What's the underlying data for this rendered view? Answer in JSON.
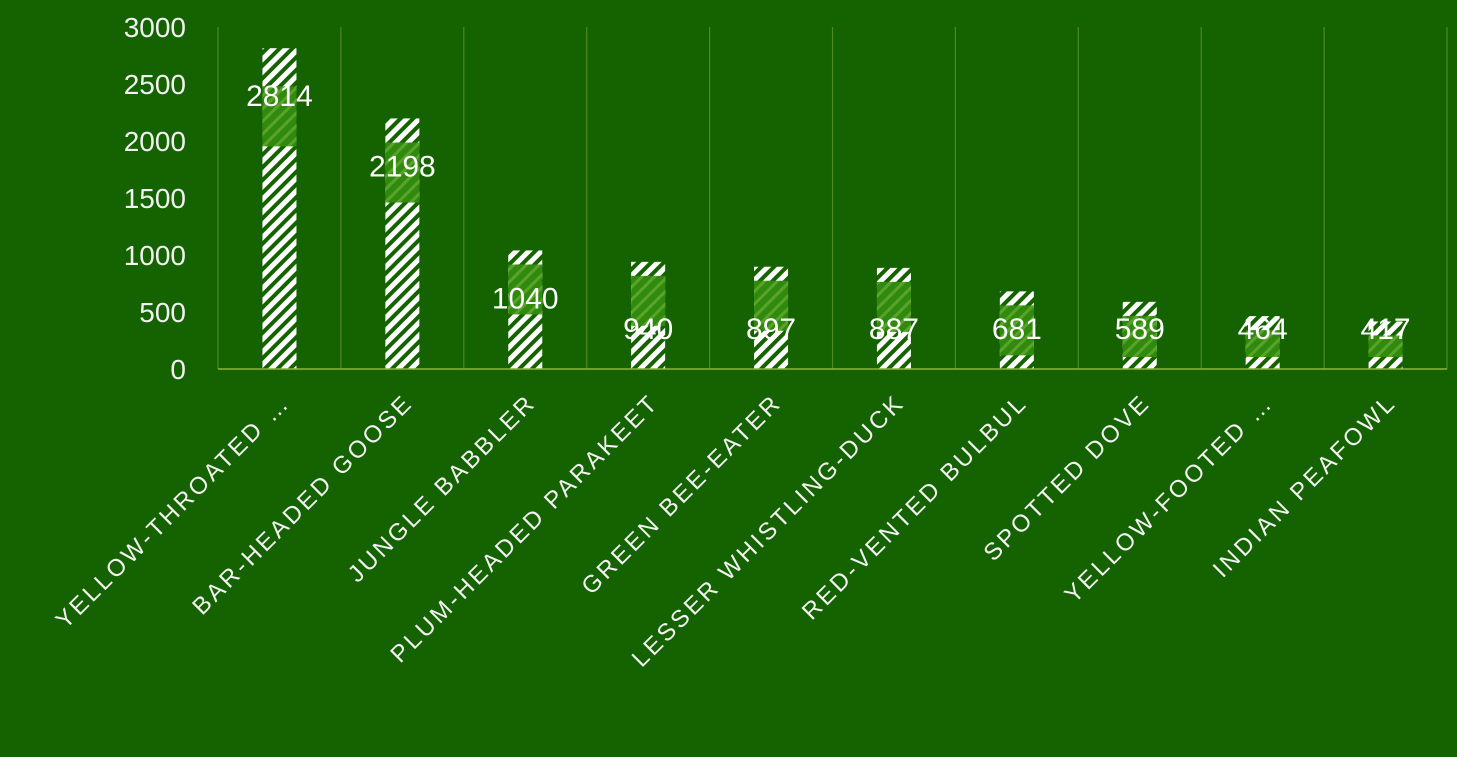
{
  "colors": {
    "background": "#156200",
    "gridline": "#4f8a1e",
    "axis": "#8bb43a",
    "bar_hatch": "#ffffff",
    "label_band": "#2f8a0d"
  },
  "chart_data": {
    "type": "bar",
    "title": "",
    "xlabel": "",
    "ylabel": "",
    "ylim": [
      0,
      3000
    ],
    "yticks": [
      "0",
      "500",
      "1000",
      "1500",
      "2000",
      "2500",
      "3000"
    ],
    "grid": "vertical",
    "legend": "none",
    "categories": [
      "YELLOW-THROATED …",
      "BAR-HEADED GOOSE",
      "JUNGLE BABBLER",
      "PLUM-HEADED PARAKEET",
      "GREEN BEE-EATER",
      "LESSER WHISTLING-DUCK",
      "RED-VENTED BULBUL",
      "SPOTTED DOVE",
      "YELLOW-FOOTED …",
      "INDIAN PEAFOWL"
    ],
    "values": [
      2814,
      2198,
      1040,
      940,
      897,
      887,
      681,
      589,
      464,
      417
    ],
    "data_labels": [
      "2814",
      "2198",
      "1040",
      "940",
      "897",
      "887",
      "681",
      "589",
      "464",
      "417"
    ]
  }
}
